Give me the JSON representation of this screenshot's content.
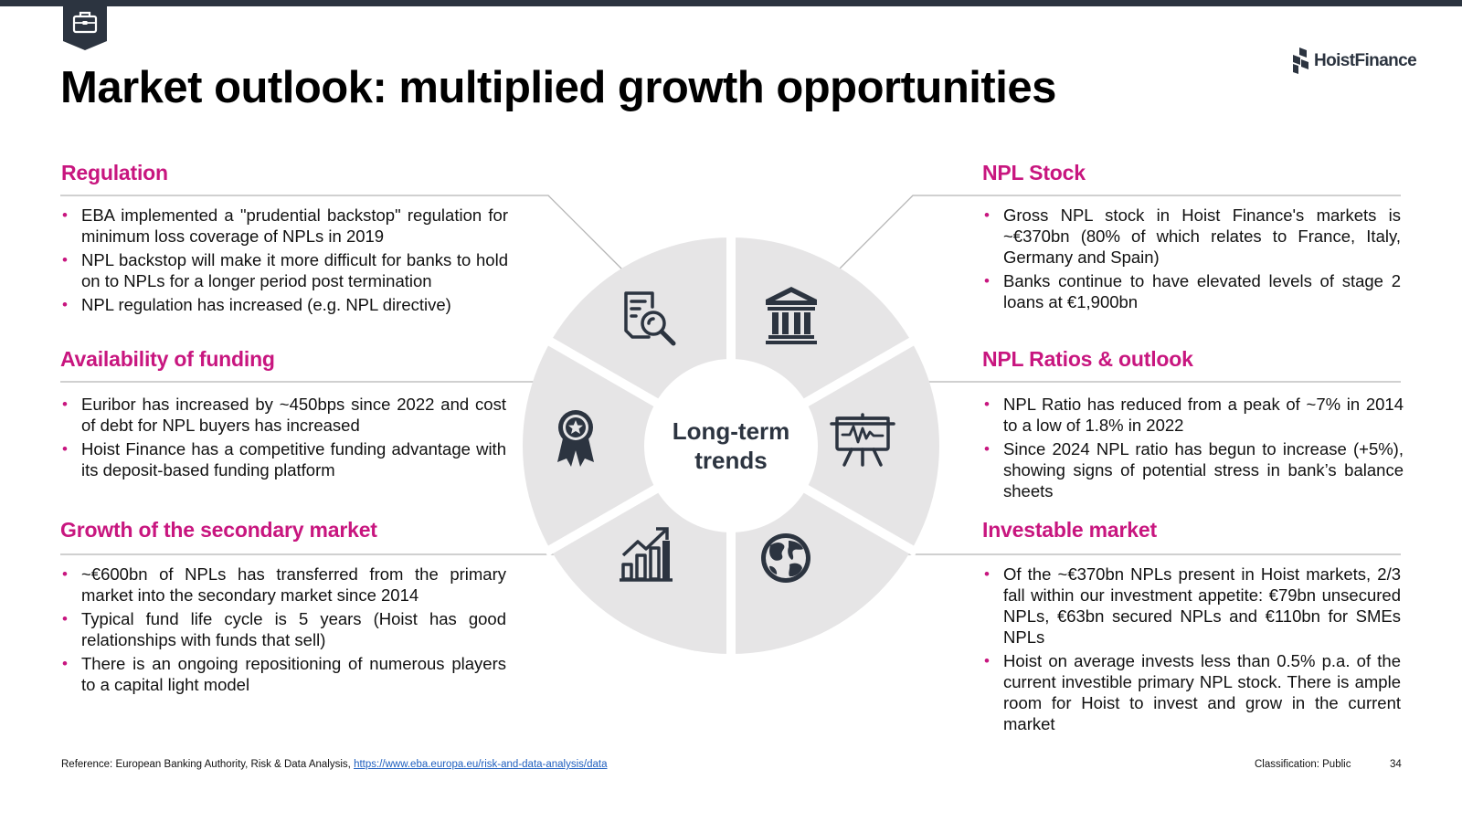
{
  "title": "Market outlook: multiplied growth opportunities",
  "brand": {
    "logo_text": "HoistFinance",
    "accent_color": "#c8167f",
    "dark_color": "#2c3440",
    "wheel_color": "#e6e5e6"
  },
  "center_label": "Long-term trends",
  "sections": [
    {
      "id": "regulation",
      "title": "Regulation",
      "icon": "document-search-icon",
      "bullets": [
        "EBA implemented a \"prudential backstop\" regulation for minimum loss coverage of NPLs in 2019",
        "NPL backstop will make it more difficult for banks to hold on to NPLs for a longer period post termination",
        "NPL regulation has increased (e.g. NPL directive)"
      ]
    },
    {
      "id": "funding",
      "title": "Availability of funding",
      "icon": "award-ribbon-icon",
      "bullets": [
        "Euribor has increased by ~450bps since 2022 and cost of debt for NPL buyers has increased",
        "Hoist Finance has a competitive funding advantage with its deposit-based funding platform"
      ]
    },
    {
      "id": "secondary",
      "title": "Growth of the secondary market",
      "icon": "growth-chart-icon",
      "bullets": [
        "~€600bn of NPLs has transferred from the primary market into the secondary market since 2014",
        "Typical fund life cycle is 5 years (Hoist has good relationships with funds that sell)",
        "There is an ongoing repositioning of numerous players to a capital light model"
      ]
    },
    {
      "id": "npl_stock",
      "title": "NPL Stock",
      "icon": "bank-icon",
      "bullets": [
        "Gross NPL stock in Hoist Finance's markets is ~€370bn (80% of which relates to France, Italy, Germany and Spain)",
        "Banks continue to have elevated levels of stage 2 loans at €1,900bn"
      ]
    },
    {
      "id": "npl_ratios",
      "title": "NPL Ratios & outlook",
      "icon": "presentation-board-icon",
      "bullets": [
        "NPL Ratio has reduced from a peak of ~7% in 2014 to a low of 1.8% in 2022",
        "Since 2024 NPL ratio has begun to increase (+5%), showing signs of potential stress in bank’s balance sheets"
      ]
    },
    {
      "id": "investable",
      "title": "Investable market",
      "icon": "globe-icon",
      "bullets": [
        "Of the ~€370bn NPLs present in Hoist markets, 2/3 fall within our investment appetite: €79bn unsecured NPLs, €63bn secured NPLs and €110bn for SMEs NPLs",
        "Hoist on average invests less than 0.5% p.a. of the current investible primary NPL stock. There is ample room for Hoist to invest and grow in the current market"
      ]
    }
  ],
  "footer": {
    "reference_prefix": "Reference: European Banking Authority, Risk & Data Analysis,",
    "reference_link": "https://www.eba.europa.eu/risk-and-data-analysis/data",
    "classification": "Classification: Public",
    "page_number": "34"
  }
}
